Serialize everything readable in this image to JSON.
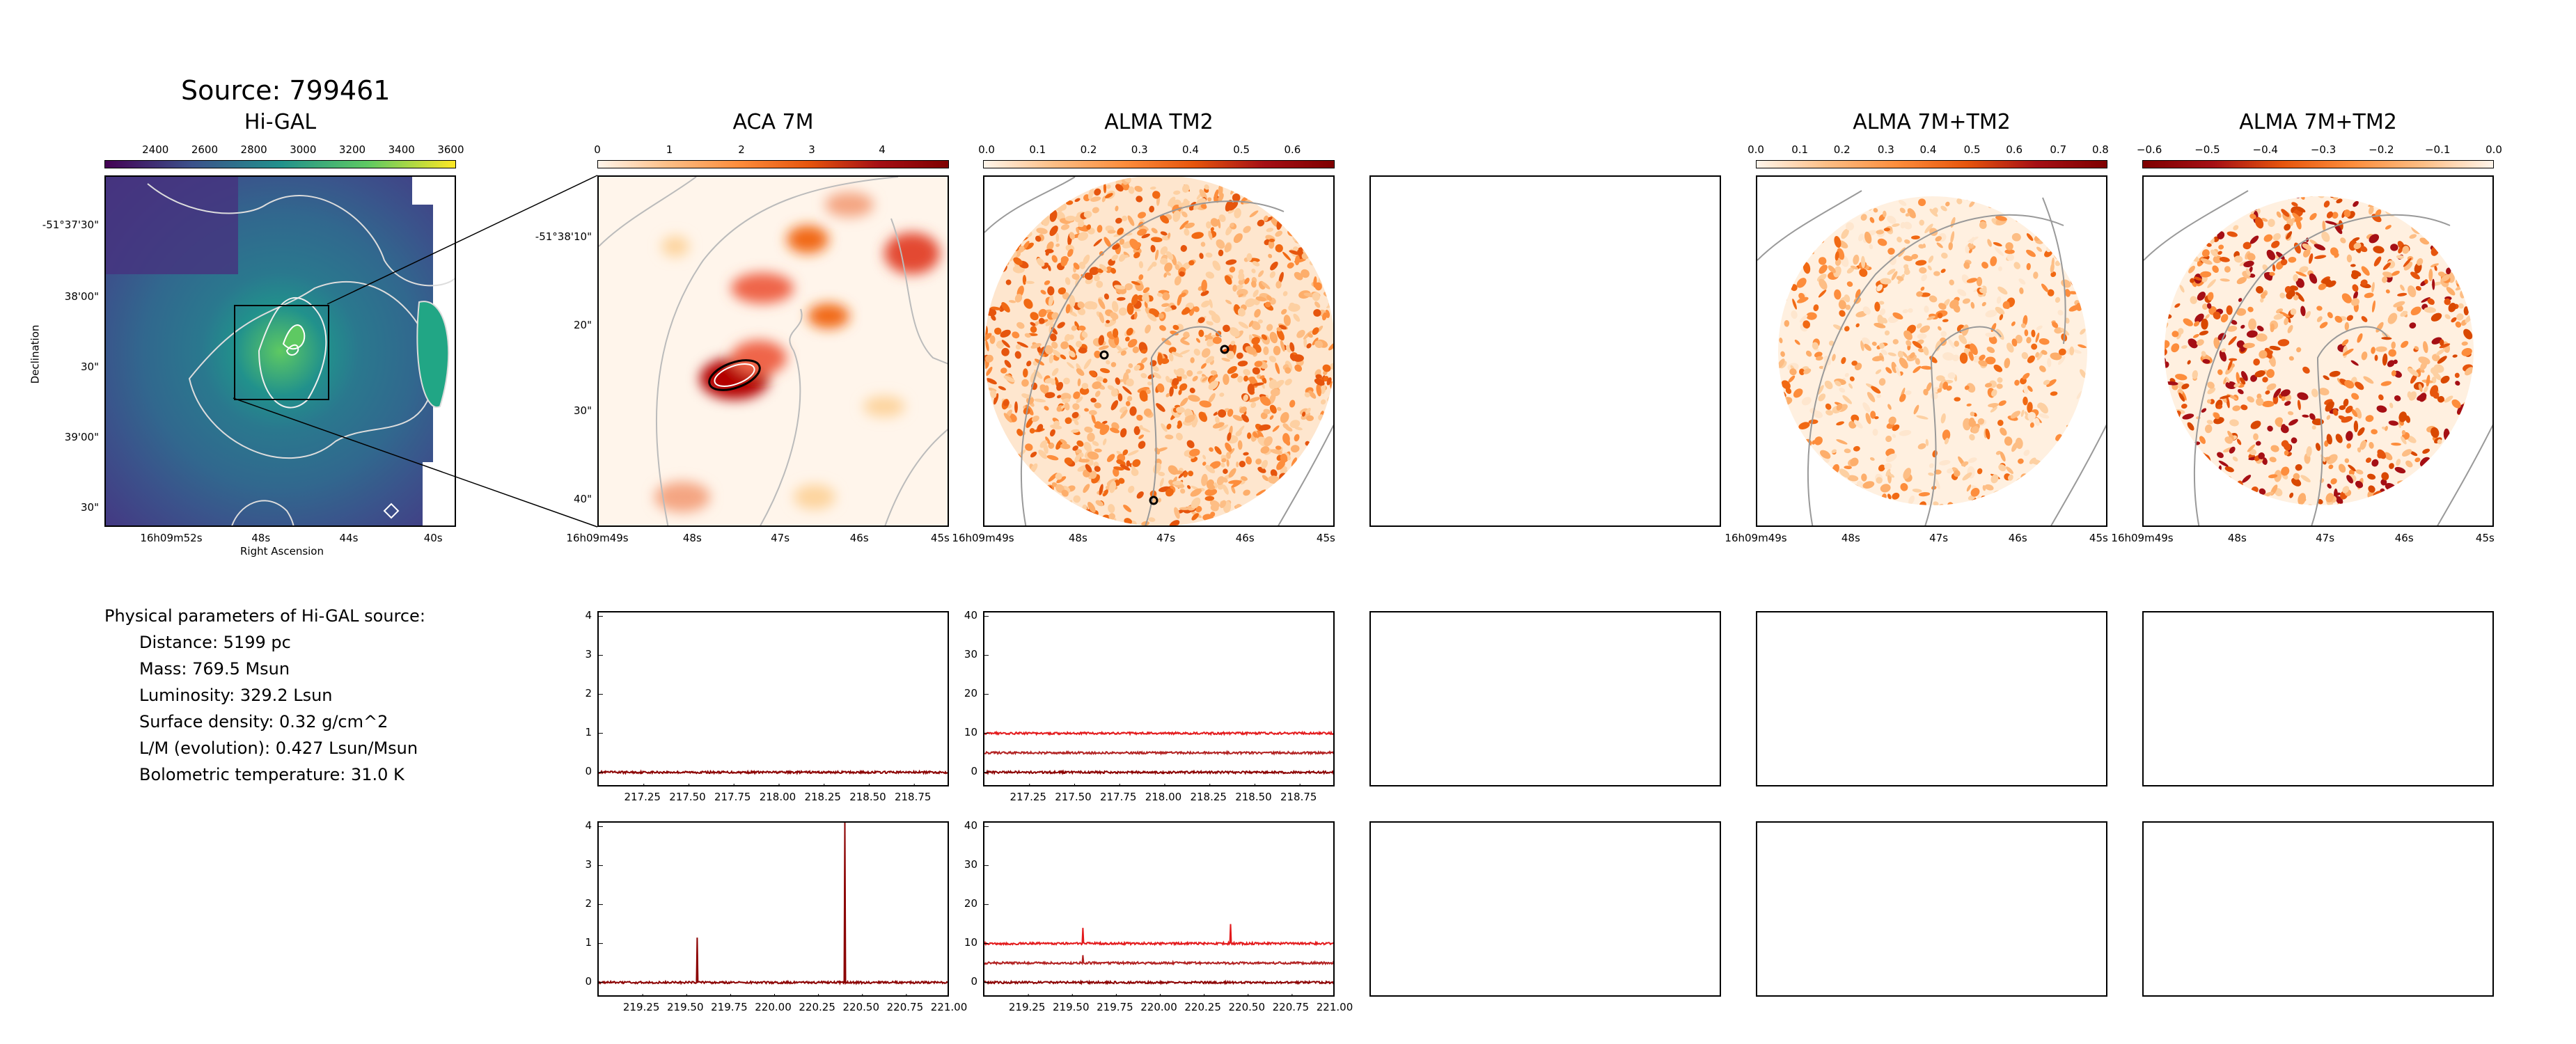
{
  "source_title": "Source: 799461",
  "panels": {
    "higal": {
      "title": "Hi-GAL",
      "cbar_ticks": [
        "2400",
        "2600",
        "2800",
        "3000",
        "3200",
        "3400",
        "3600"
      ],
      "yticks": [
        "-51°37'30\"",
        "38'00\"",
        "30\"",
        "39'00\"",
        "30\""
      ],
      "xticks": [
        "16h09m52s",
        "48s",
        "44s",
        "40s"
      ],
      "xlabel": "Right Ascension",
      "ylabel": "Declination"
    },
    "aca7m": {
      "title": "ACA 7M",
      "cbar_ticks": [
        "0",
        "1",
        "2",
        "3",
        "4"
      ],
      "yticks": [
        "-51°38'10\"",
        "20\"",
        "30\"",
        "40\""
      ],
      "xticks": [
        "16h09m49s",
        "48s",
        "47s",
        "46s",
        "45s"
      ]
    },
    "tm2": {
      "title": "ALMA TM2",
      "cbar_ticks": [
        "0.0",
        "0.1",
        "0.2",
        "0.3",
        "0.4",
        "0.5",
        "0.6"
      ],
      "xticks": [
        "16h09m49s",
        "48s",
        "47s",
        "46s",
        "45s"
      ]
    },
    "comb": {
      "title": "ALMA 7M+TM2",
      "cbar_ticks": [
        "0.0",
        "0.1",
        "0.2",
        "0.3",
        "0.4",
        "0.5",
        "0.6",
        "0.7",
        "0.8"
      ],
      "xticks": [
        "16h09m49s",
        "48s",
        "47s",
        "46s",
        "45s"
      ]
    },
    "comb_neg": {
      "title": "ALMA 7M+TM2",
      "cbar_ticks": [
        "−0.6",
        "−0.5",
        "−0.4",
        "−0.3",
        "−0.2",
        "−0.1",
        "0.0"
      ],
      "xticks": [
        "16h09m49s",
        "48s",
        "47s",
        "46s",
        "45s"
      ]
    }
  },
  "params": {
    "heading": "Physical parameters of Hi-GAL source:",
    "lines": [
      "Distance: 5199 pc",
      "Mass: 769.5 Msun",
      "Luminosity: 329.2 Lsun",
      "Surface density: 0.32 g/cm^2",
      "L/M (evolution): 0.427 Lsun/Msun",
      "Bolometric temperature: 31.0 K"
    ]
  },
  "chart_data": [
    {
      "type": "line",
      "title": "",
      "panel": "aca7m-spectrum-1",
      "x_ticks": [
        "217.25",
        "217.50",
        "217.75",
        "218.00",
        "218.25",
        "218.50",
        "218.75"
      ],
      "y_ticks": [
        "0",
        "1",
        "2",
        "3",
        "4"
      ],
      "xlim": [
        217.0,
        218.95
      ],
      "ylim": [
        -0.4,
        4.1
      ],
      "series": [
        {
          "color": "#8b0000",
          "baseline": 0.0,
          "spikes": []
        }
      ]
    },
    {
      "type": "line",
      "title": "",
      "panel": "tm2-spectrum-1",
      "x_ticks": [
        "217.25",
        "217.50",
        "217.75",
        "218.00",
        "218.25",
        "218.50",
        "218.75"
      ],
      "y_ticks": [
        "0",
        "10",
        "20",
        "30",
        "40"
      ],
      "xlim": [
        217.0,
        218.95
      ],
      "ylim": [
        -4,
        41
      ],
      "series": [
        {
          "color": "#e31a1c",
          "baseline": 10,
          "spikes": []
        },
        {
          "color": "#b22222",
          "baseline": 5,
          "spikes": []
        },
        {
          "color": "#8b0000",
          "baseline": 0,
          "spikes": []
        }
      ]
    },
    {
      "type": "line",
      "title": "",
      "panel": "aca7m-spectrum-2",
      "x_ticks": [
        "219.25",
        "219.50",
        "219.75",
        "220.00",
        "220.25",
        "220.50",
        "220.75",
        "221.00"
      ],
      "y_ticks": [
        "0",
        "1",
        "2",
        "3",
        "4"
      ],
      "xlim": [
        219.0,
        221.0
      ],
      "ylim": [
        -0.4,
        4.1
      ],
      "series": [
        {
          "color": "#8b0000",
          "baseline": 0.0,
          "spikes": [
            {
              "x": 219.56,
              "y": 1.15
            },
            {
              "x": 220.4,
              "y": 4.1
            }
          ]
        }
      ]
    },
    {
      "type": "line",
      "title": "",
      "panel": "tm2-spectrum-2",
      "x_ticks": [
        "219.25",
        "219.50",
        "219.75",
        "220.00",
        "220.25",
        "220.50",
        "220.75",
        "221.00"
      ],
      "y_ticks": [
        "0",
        "10",
        "20",
        "30",
        "40"
      ],
      "xlim": [
        219.0,
        221.0
      ],
      "ylim": [
        -4,
        41
      ],
      "series": [
        {
          "color": "#e31a1c",
          "baseline": 10,
          "spikes": [
            {
              "x": 219.56,
              "y": 14
            },
            {
              "x": 220.4,
              "y": 15
            }
          ]
        },
        {
          "color": "#b22222",
          "baseline": 5,
          "spikes": [
            {
              "x": 219.56,
              "y": 7
            }
          ]
        },
        {
          "color": "#8b0000",
          "baseline": 0,
          "spikes": []
        }
      ]
    }
  ]
}
